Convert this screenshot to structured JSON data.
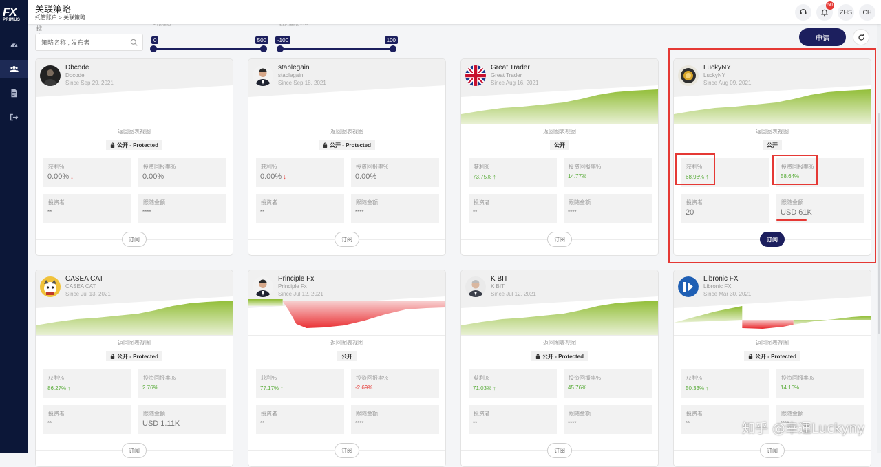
{
  "sidebar": {
    "logo_fx": "FX",
    "logo_primus": "PRIMUS"
  },
  "header": {
    "title": "关联策略",
    "breadcrumb": "托管账户  >  关联策略",
    "notifications_count": "50",
    "lang1": "ZHS",
    "lang2": "CH"
  },
  "filters": {
    "search_label": "搜索",
    "search_placeholder": "策略名称 , 发布者",
    "slider1": {
      "caption": "# 跟随者",
      "min": "0",
      "max": "500"
    },
    "slider2": {
      "caption": "投资回报率%",
      "min": "-100",
      "max": "100"
    }
  },
  "actions": {
    "apply_label": "申请"
  },
  "common": {
    "back_to_chart": "返回图表视图",
    "profit_label": "获利%",
    "roi_label": "投资回报率%",
    "investors_label": "投资者",
    "follow_amount_label": "跟随金额",
    "subscribe_label": "订阅"
  },
  "cards": [
    {
      "name": "Dbcode",
      "sub": "Dbcode",
      "since": "Since Sep 29, 2021",
      "tag": "公开 - Protected",
      "locked": true,
      "profit": "0.00%",
      "profit_dir": "down",
      "roi": "0.00%",
      "investors": "**",
      "amount": "****",
      "chart": "none",
      "avatar": "dark"
    },
    {
      "name": "stablegain",
      "sub": "stablegain",
      "since": "Since Sep 18, 2021",
      "tag": "公开 - Protected",
      "locked": true,
      "profit": "0.00%",
      "profit_dir": "down",
      "roi": "0.00%",
      "investors": "**",
      "amount": "****",
      "chart": "none",
      "avatar": "person"
    },
    {
      "name": "Great Trader",
      "sub": "Great Trader",
      "since": "Since Aug 16, 2021",
      "tag": "公开",
      "locked": false,
      "profit": "73.75%",
      "profit_dir": "up",
      "roi": "14.77%",
      "investors": "**",
      "amount": "****",
      "chart": "rise",
      "avatar": "uk"
    },
    {
      "name": "LuckyNY",
      "sub": "LuckyNY",
      "since": "Since Aug 09, 2021",
      "tag": "公开",
      "locked": false,
      "profit": "68.98%",
      "profit_dir": "up",
      "roi": "58.64%",
      "investors": "20",
      "amount": "USD 61K",
      "chart": "rise",
      "avatar": "gold"
    },
    {
      "name": "CASEA CAT",
      "sub": "CASEA CAT",
      "since": "Since Jul 13, 2021",
      "tag": "公开 - Protected",
      "locked": true,
      "profit": "86.27%",
      "profit_dir": "up",
      "roi": "2.76%",
      "investors": "**",
      "amount": "USD 1.11K",
      "chart": "rise",
      "avatar": "cat"
    },
    {
      "name": "Principle Fx",
      "sub": "Principle Fx",
      "since": "Since Jul 12, 2021",
      "tag": "公开",
      "locked": false,
      "profit": "77.17%",
      "profit_dir": "up",
      "roi": "-2.69%",
      "investors": "**",
      "amount": "****",
      "chart": "drawdown",
      "avatar": "person"
    },
    {
      "name": "K BIT",
      "sub": "K BIT",
      "since": "Since Jul 12, 2021",
      "tag": "公开 - Protected",
      "locked": true,
      "profit": "71.03%",
      "profit_dir": "up",
      "roi": "45.76%",
      "investors": "**",
      "amount": "****",
      "chart": "rise",
      "avatar": "person2"
    },
    {
      "name": "Libronic FX",
      "sub": "Libronic FX",
      "since": "Since Mar 30, 2021",
      "tag": "公开 - Protected",
      "locked": true,
      "profit": "50.33%",
      "profit_dir": "up",
      "roi": "14.16%",
      "investors": "**",
      "amount": "****",
      "chart": "mixed",
      "avatar": "blue"
    }
  ],
  "watermark": "知乎 @幸運Luckyny",
  "colors": {
    "navy": "#1c1f5e",
    "sidebar": "#0c1738",
    "green": "#5aac3a",
    "red": "#e53935",
    "highlight": "#e53935"
  }
}
